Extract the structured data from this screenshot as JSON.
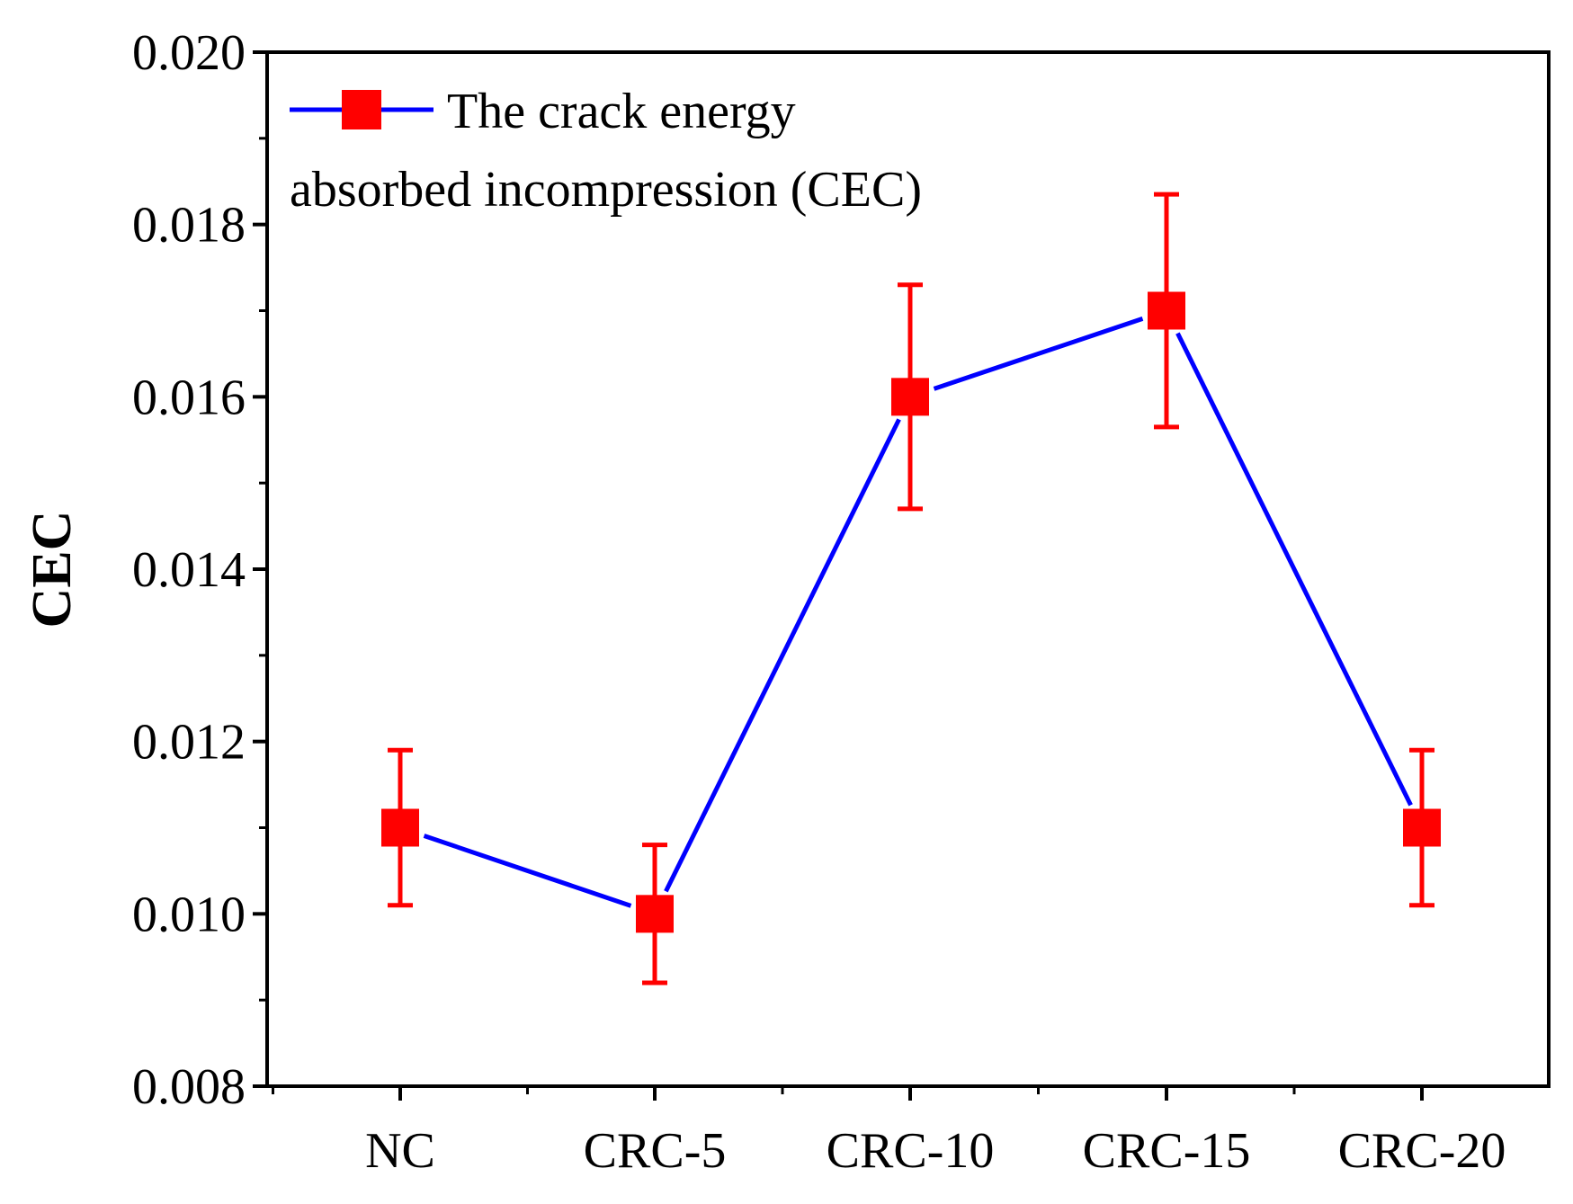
{
  "chart_data": {
    "type": "line",
    "categories": [
      "NC",
      "CRC-5",
      "CRC-10",
      "CRC-15",
      "CRC-20"
    ],
    "series": [
      {
        "name_lines": [
          "The crack energy",
          "absorbed incompression (CEC)"
        ],
        "values": [
          0.011,
          0.01,
          0.016,
          0.017,
          0.011
        ],
        "error_low": [
          0.0101,
          0.0092,
          0.0147,
          0.01565,
          0.0101
        ],
        "error_high": [
          0.0119,
          0.0108,
          0.0173,
          0.01835,
          0.0119
        ],
        "line_color": "#0000ff",
        "marker_color": "#ff0000",
        "marker": "square"
      }
    ],
    "xlabel": "",
    "ylabel": "CEC",
    "ylim": [
      0.008,
      0.02
    ],
    "yticks": [
      "0.008",
      "0.010",
      "0.012",
      "0.014",
      "0.016",
      "0.018",
      "0.020"
    ],
    "grid": false,
    "legend_position": "top-left"
  }
}
